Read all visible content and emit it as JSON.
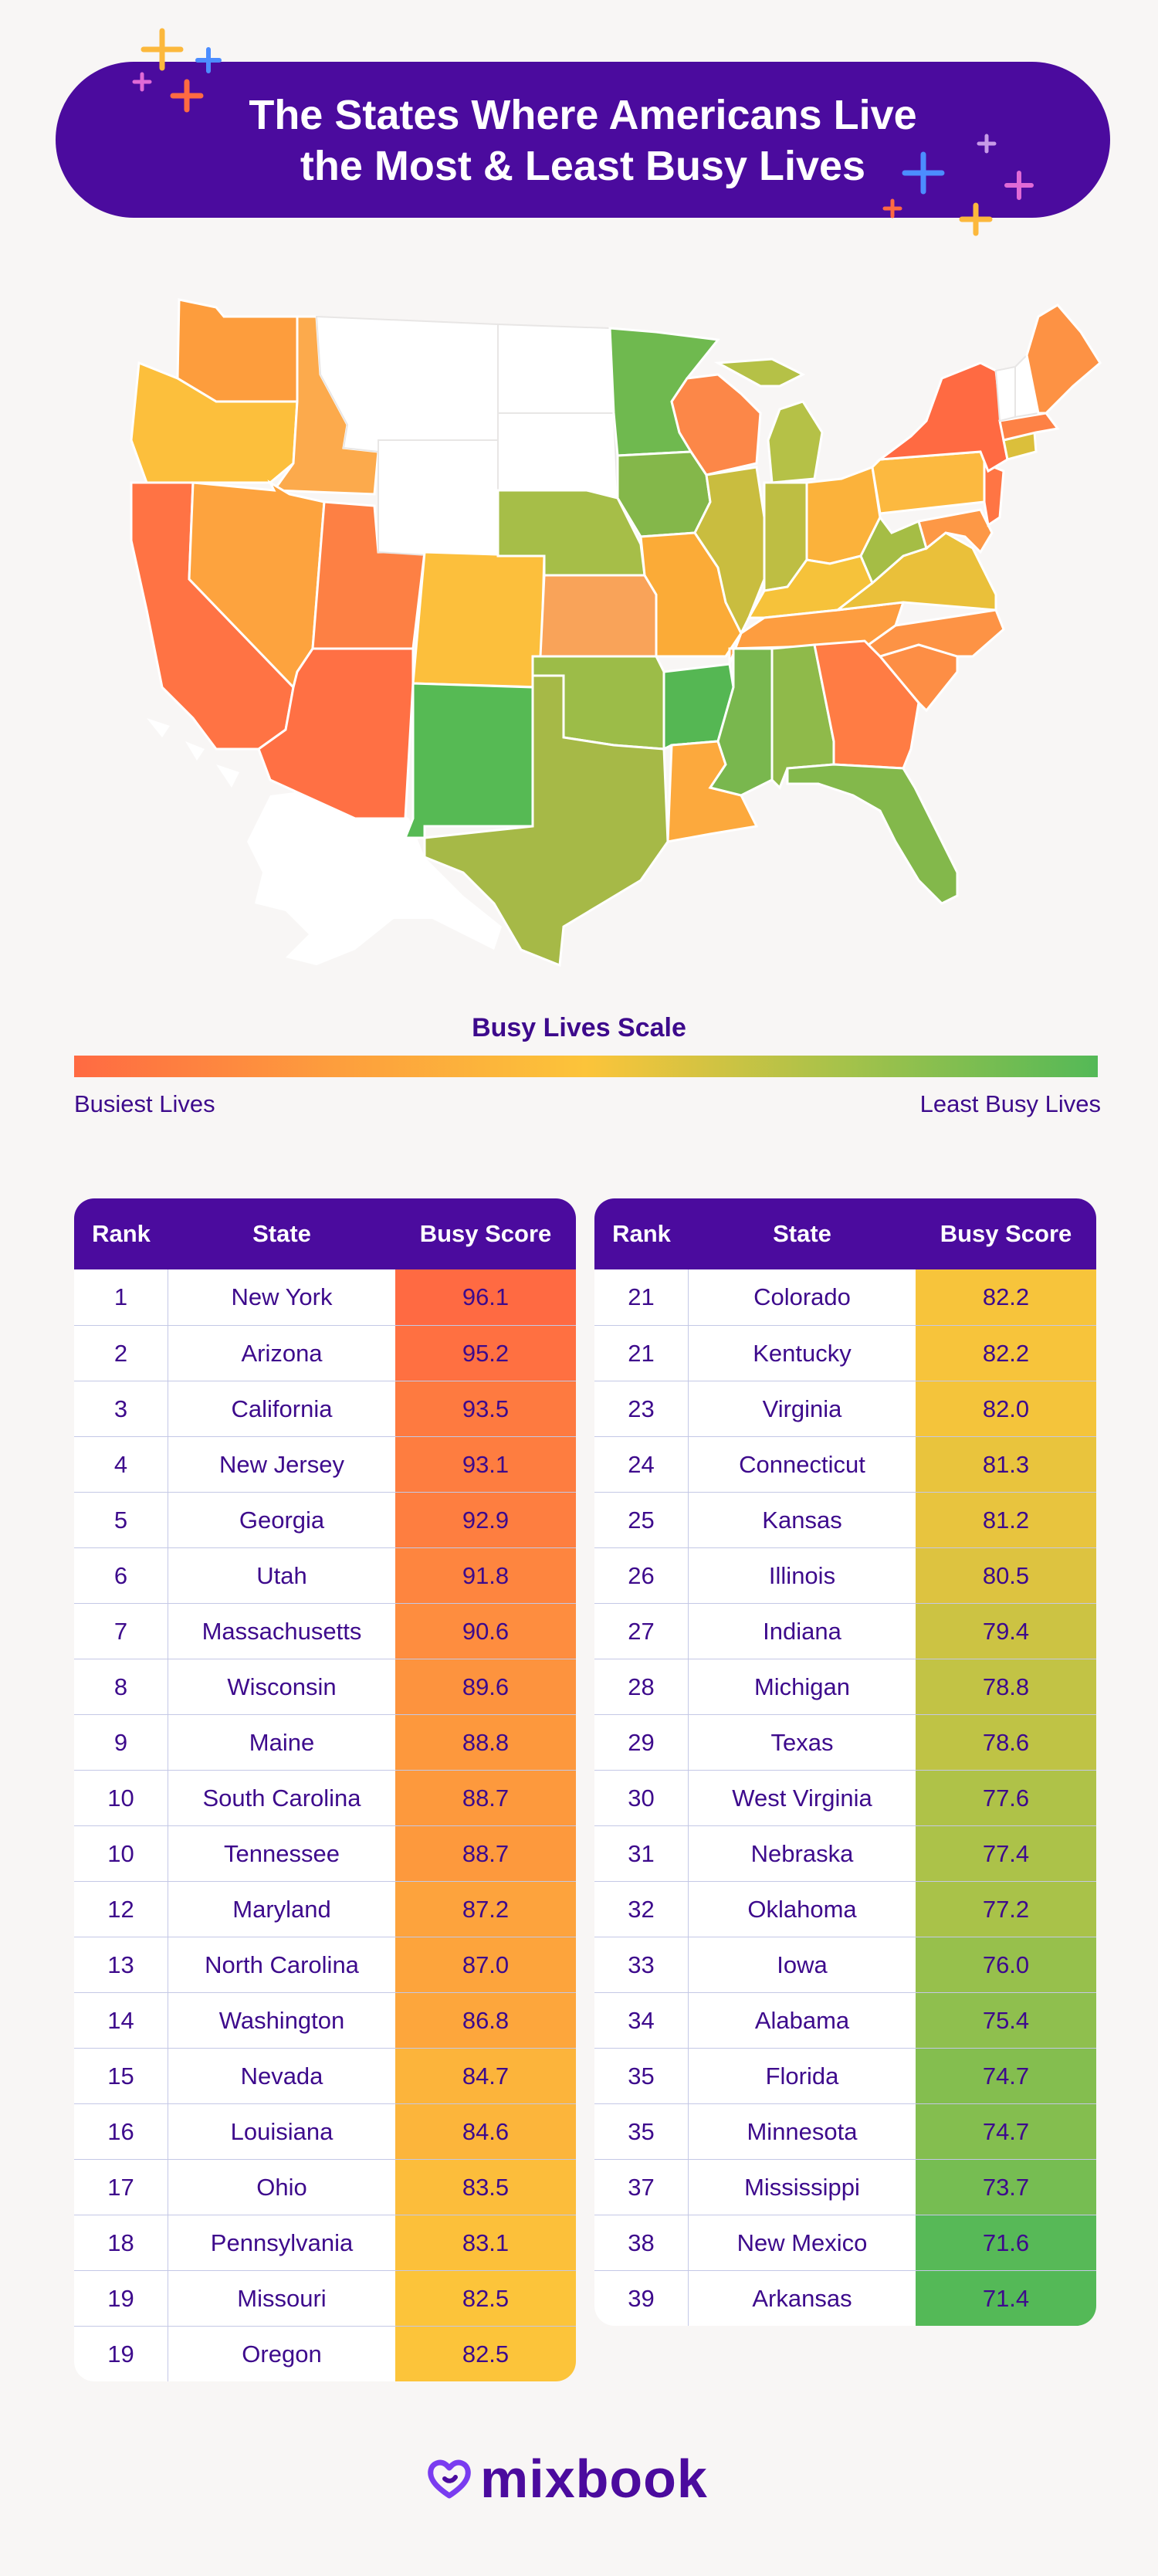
{
  "title": {
    "line1": "The States Where Americans Live",
    "line2": "the Most & Least Busy Lives"
  },
  "scale": {
    "title": "Busy Lives Scale",
    "left_label": "Busiest Lives",
    "right_label": "Least Busy Lives",
    "colors": [
      "#ff6a42",
      "#fd9d3d",
      "#fcc43a",
      "#a6c24a",
      "#54b957"
    ]
  },
  "logo": {
    "text": "mixbook",
    "icon": "heart-logo-icon"
  },
  "chart_data": [
    {
      "type": "map",
      "color_stops": [
        {
          "value": 96.1,
          "color": "#ff6a42"
        },
        {
          "value": 88.0,
          "color": "#fd9d3d"
        },
        {
          "value": 82.5,
          "color": "#fcc43a"
        },
        {
          "value": 77.0,
          "color": "#a6c24a"
        },
        {
          "value": 71.4,
          "color": "#54b957"
        }
      ],
      "no_data_color": "#ffffff"
    },
    {
      "type": "table",
      "columns": [
        "Rank",
        "State",
        "Busy Score"
      ],
      "rows": [
        {
          "rank": "1",
          "state": "New York",
          "score": 96.1
        },
        {
          "rank": "2",
          "state": "Arizona",
          "score": 95.2
        },
        {
          "rank": "3",
          "state": "California",
          "score": 93.5
        },
        {
          "rank": "4",
          "state": "New Jersey",
          "score": 93.1
        },
        {
          "rank": "5",
          "state": "Georgia",
          "score": 92.9
        },
        {
          "rank": "6",
          "state": "Utah",
          "score": 91.8
        },
        {
          "rank": "7",
          "state": "Massachusetts",
          "score": 90.6
        },
        {
          "rank": "8",
          "state": "Wisconsin",
          "score": 89.6
        },
        {
          "rank": "9",
          "state": "Maine",
          "score": 88.8
        },
        {
          "rank": "10",
          "state": "South Carolina",
          "score": 88.7
        },
        {
          "rank": "10",
          "state": "Tennessee",
          "score": 88.7
        },
        {
          "rank": "12",
          "state": "Maryland",
          "score": 87.2
        },
        {
          "rank": "13",
          "state": "North Carolina",
          "score": 87.0
        },
        {
          "rank": "14",
          "state": "Washington",
          "score": 86.8
        },
        {
          "rank": "15",
          "state": "Nevada",
          "score": 84.7
        },
        {
          "rank": "16",
          "state": "Louisiana",
          "score": 84.6
        },
        {
          "rank": "17",
          "state": "Ohio",
          "score": 83.5
        },
        {
          "rank": "18",
          "state": "Pennsylvania",
          "score": 83.1
        },
        {
          "rank": "19",
          "state": "Missouri",
          "score": 82.5
        },
        {
          "rank": "19",
          "state": "Oregon",
          "score": 82.5
        }
      ]
    },
    {
      "type": "table",
      "columns": [
        "Rank",
        "State",
        "Busy Score"
      ],
      "rows": [
        {
          "rank": "21",
          "state": "Colorado",
          "score": 82.2
        },
        {
          "rank": "21",
          "state": "Kentucky",
          "score": 82.2
        },
        {
          "rank": "23",
          "state": "Virginia",
          "score": 82.0
        },
        {
          "rank": "24",
          "state": "Connecticut",
          "score": 81.3
        },
        {
          "rank": "25",
          "state": "Kansas",
          "score": 81.2
        },
        {
          "rank": "26",
          "state": "Illinois",
          "score": 80.5
        },
        {
          "rank": "27",
          "state": "Indiana",
          "score": 79.4
        },
        {
          "rank": "28",
          "state": "Michigan",
          "score": 78.8
        },
        {
          "rank": "29",
          "state": "Texas",
          "score": 78.6
        },
        {
          "rank": "30",
          "state": "West Virginia",
          "score": 77.6
        },
        {
          "rank": "31",
          "state": "Nebraska",
          "score": 77.4
        },
        {
          "rank": "32",
          "state": "Oklahoma",
          "score": 77.2
        },
        {
          "rank": "33",
          "state": "Iowa",
          "score": 76.0
        },
        {
          "rank": "34",
          "state": "Alabama",
          "score": 75.4
        },
        {
          "rank": "35",
          "state": "Florida",
          "score": 74.7
        },
        {
          "rank": "35",
          "state": "Minnesota",
          "score": 74.7
        },
        {
          "rank": "37",
          "state": "Mississippi",
          "score": 73.7
        },
        {
          "rank": "38",
          "state": "New Mexico",
          "score": 71.6
        },
        {
          "rank": "39",
          "state": "Arkansas",
          "score": 71.4
        }
      ]
    }
  ]
}
